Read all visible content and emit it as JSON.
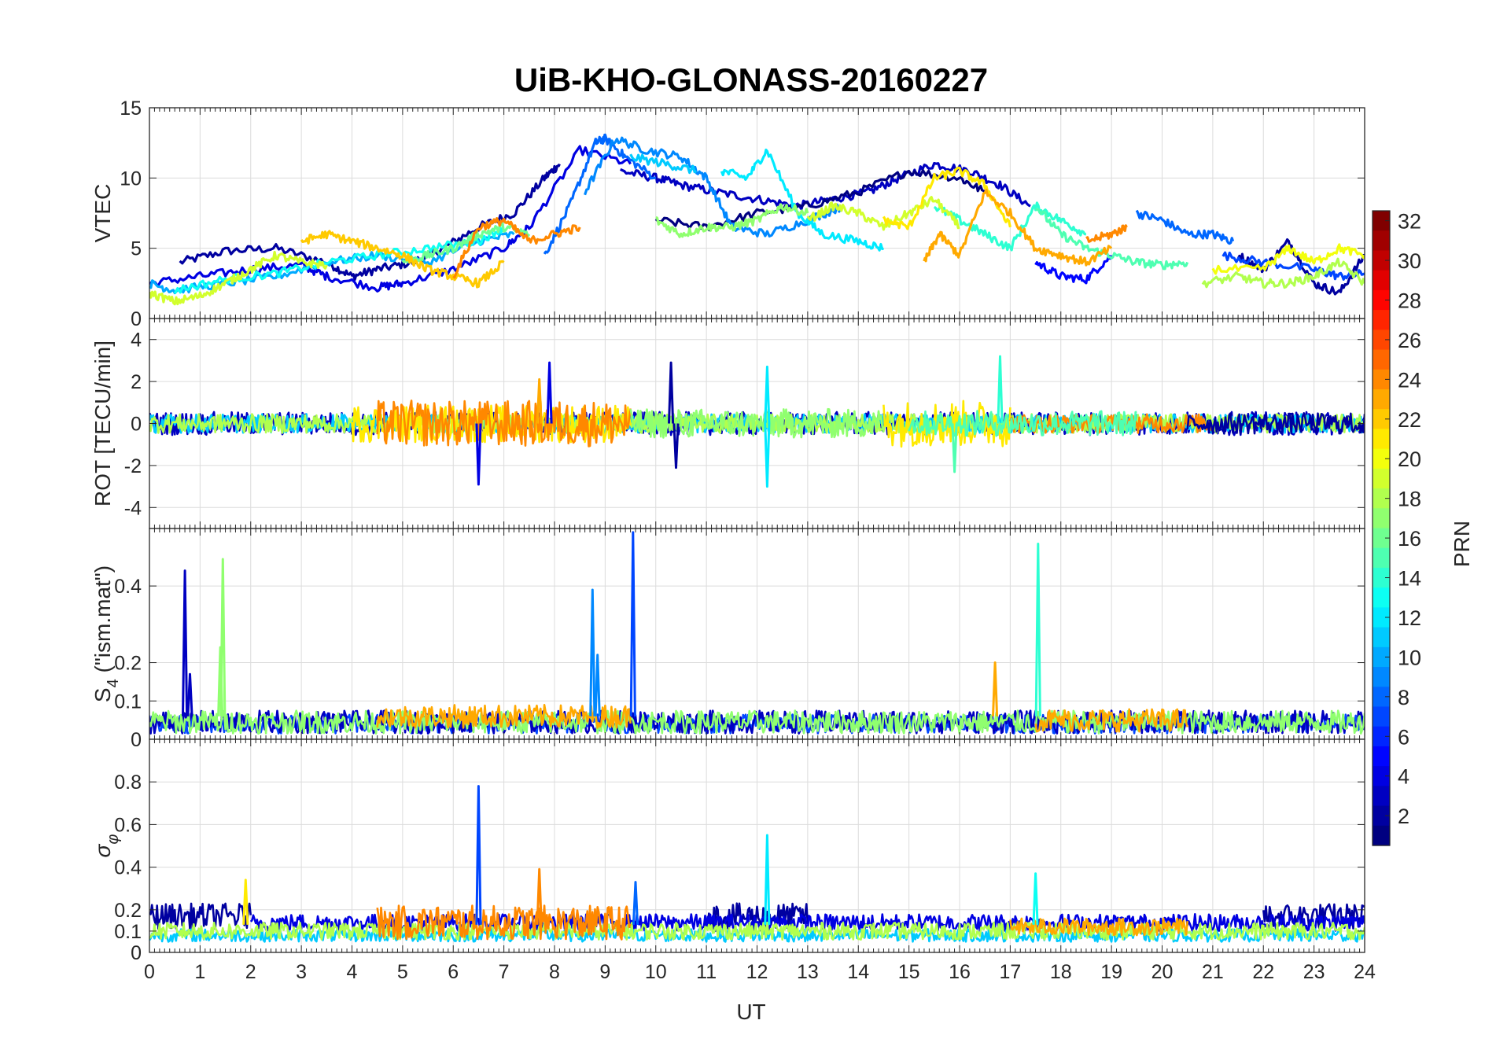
{
  "figure": {
    "title": "UiB-KHO-GLONASS-20160227",
    "xlabel": "UT",
    "x_ticks": [
      "0",
      "1",
      "2",
      "3",
      "4",
      "5",
      "6",
      "7",
      "8",
      "9",
      "10",
      "11",
      "12",
      "13",
      "14",
      "15",
      "16",
      "17",
      "18",
      "19",
      "20",
      "21",
      "22",
      "23",
      "24"
    ]
  },
  "colorbar": {
    "label": "PRN",
    "colormap": "jet",
    "range": [
      1,
      32
    ],
    "ticks": [
      "2",
      "4",
      "6",
      "8",
      "10",
      "12",
      "14",
      "16",
      "18",
      "20",
      "22",
      "24",
      "26",
      "28",
      "30",
      "32"
    ]
  },
  "chart_data": [
    {
      "type": "line",
      "name": "vtec",
      "title": "UiB-KHO-GLONASS-20160227",
      "xlabel": "",
      "ylabel": "VTEC",
      "xlim": [
        0,
        24
      ],
      "ylim": [
        0,
        15
      ],
      "y_ticks": [
        "0",
        "5",
        "10",
        "15"
      ],
      "grid": true,
      "color_by": "PRN",
      "series": [
        {
          "prn": 2,
          "x": [
            0.6,
            1.5,
            2.5,
            3.5,
            4.0,
            4.5,
            5.2,
            5.8,
            6.5,
            7.2,
            7.8,
            8.1
          ],
          "y": [
            4.0,
            4.8,
            5.0,
            4.0,
            3.0,
            3.5,
            4.0,
            5.0,
            6.5,
            7.5,
            10.0,
            11.0
          ]
        },
        {
          "prn": 3,
          "x": [
            9.3,
            10.0,
            10.5,
            11.2,
            12.0,
            12.8,
            13.5,
            14.2,
            14.8,
            15.5,
            16.2,
            16.8,
            17.4
          ],
          "y": [
            10.5,
            10.0,
            9.5,
            9.0,
            8.5,
            8.0,
            8.5,
            9.0,
            10.0,
            11.0,
            10.5,
            9.5,
            8.0
          ]
        },
        {
          "prn": 4,
          "x": [
            0.0,
            1.0,
            2.0,
            3.0,
            3.5,
            4.5,
            5.0,
            6.0,
            7.0,
            7.5,
            8.5,
            9.5
          ],
          "y": [
            2.5,
            3.0,
            3.5,
            3.8,
            3.0,
            2.2,
            2.5,
            3.5,
            5.0,
            6.5,
            12.0,
            11.0
          ]
        },
        {
          "prn": 1,
          "x": [
            10.0,
            11.0,
            12.0,
            13.0,
            14.0,
            15.0,
            16.0,
            16.5
          ],
          "y": [
            7.0,
            6.5,
            7.5,
            8.0,
            9.0,
            10.5,
            10.0,
            9.0
          ]
        },
        {
          "prn": 2,
          "x": [
            21.5,
            22.0,
            22.5,
            23.0,
            23.5,
            24.0
          ],
          "y": [
            4.5,
            3.5,
            5.5,
            2.5,
            1.8,
            4.5
          ]
        },
        {
          "prn": 5,
          "x": [
            17.5,
            18.0,
            18.5,
            19.0
          ],
          "y": [
            4.0,
            3.0,
            2.8,
            4.5
          ]
        },
        {
          "prn": 8,
          "x": [
            7.8,
            8.3,
            8.8,
            9.0,
            9.4,
            10.0
          ],
          "y": [
            4.5,
            8.0,
            12.5,
            12.8,
            11.5,
            10.0
          ]
        },
        {
          "prn": 8,
          "x": [
            19.5,
            20.0,
            20.5,
            21.0,
            21.4
          ],
          "y": [
            7.5,
            7.0,
            6.0,
            6.0,
            5.5
          ]
        },
        {
          "prn": 7,
          "x": [
            21.2,
            22.0,
            23.0,
            23.5,
            24.0
          ],
          "y": [
            4.5,
            4.0,
            3.5,
            3.0,
            3.2
          ]
        },
        {
          "prn": 9,
          "x": [
            8.6,
            9.2,
            9.8,
            10.5,
            11.0,
            11.5,
            12.2,
            13.0,
            13.7
          ],
          "y": [
            9.0,
            12.8,
            12.0,
            11.5,
            10.0,
            6.5,
            6.0,
            7.0,
            8.0
          ]
        },
        {
          "prn": 10,
          "x": [
            0.0,
            0.5,
            1.5,
            2.5,
            3.5,
            4.5,
            5.5,
            6.5,
            7.2
          ],
          "y": [
            2.5,
            2.0,
            2.5,
            3.0,
            4.0,
            4.5,
            4.0,
            5.5,
            6.0
          ]
        },
        {
          "prn": 11,
          "x": [
            9.5,
            10.2,
            10.8
          ],
          "y": [
            11.5,
            11.0,
            10.5
          ]
        },
        {
          "prn": 12,
          "x": [
            11.3,
            11.8,
            12.2,
            12.8,
            13.3,
            14.0,
            14.5
          ],
          "y": [
            10.5,
            10.0,
            12.0,
            7.5,
            6.0,
            5.5,
            5.0
          ]
        },
        {
          "prn": 13,
          "x": [
            0.5,
            1.5,
            2.5,
            3.5,
            4.5,
            5.5,
            6.5,
            7.0
          ],
          "y": [
            2.0,
            2.8,
            3.2,
            4.0,
            4.5,
            5.0,
            5.5,
            6.5
          ]
        },
        {
          "prn": 14,
          "x": [
            15.5,
            16.0,
            16.5,
            17.0,
            17.5,
            18.0,
            18.5
          ],
          "y": [
            8.0,
            7.0,
            6.0,
            5.0,
            8.0,
            7.0,
            6.0
          ]
        },
        {
          "prn": 15,
          "x": [
            17.5,
            18.0,
            18.5,
            19.0,
            19.5,
            20.0,
            20.5
          ],
          "y": [
            8.0,
            6.0,
            5.0,
            4.5,
            4.0,
            3.8,
            4.0
          ]
        },
        {
          "prn": 16,
          "x": [
            5.0,
            5.5,
            6.0,
            6.5,
            7.0,
            7.5
          ],
          "y": [
            4.0,
            4.5,
            5.0,
            6.0,
            6.5,
            6.0
          ]
        },
        {
          "prn": 17,
          "x": [
            10.0,
            10.5,
            11.0,
            11.5,
            12.0,
            12.5,
            13.0
          ],
          "y": [
            7.0,
            6.0,
            6.5,
            6.5,
            7.0,
            8.0,
            7.5
          ]
        },
        {
          "prn": 18,
          "x": [
            20.8,
            21.5,
            22.0,
            22.5,
            23.0,
            23.5,
            24.0
          ],
          "y": [
            2.5,
            3.0,
            2.5,
            2.5,
            3.0,
            4.0,
            2.5
          ]
        },
        {
          "prn": 19,
          "x": [
            0.0,
            0.5,
            1.0,
            1.5,
            2.0,
            2.5,
            3.0,
            3.5
          ],
          "y": [
            1.8,
            1.2,
            1.6,
            2.5,
            3.5,
            4.5,
            4.0,
            3.8
          ]
        },
        {
          "prn": 19,
          "x": [
            13.0,
            13.5,
            14.0,
            14.5,
            15.0,
            15.5,
            16.0
          ],
          "y": [
            7.0,
            8.0,
            7.5,
            6.5,
            7.5,
            8.5,
            6.5
          ]
        },
        {
          "prn": 20,
          "x": [
            21.0,
            22.0,
            22.5,
            23.0,
            23.5,
            24.0
          ],
          "y": [
            3.5,
            3.5,
            5.0,
            4.0,
            5.0,
            4.5
          ]
        },
        {
          "prn": 21,
          "x": [
            14.5,
            15.0,
            15.5,
            16.0,
            16.5,
            17.0
          ],
          "y": [
            7.0,
            6.5,
            10.0,
            10.5,
            9.5,
            6.5
          ]
        },
        {
          "prn": 22,
          "x": [
            3.0,
            3.5,
            4.0,
            4.5,
            5.0,
            5.5,
            6.0,
            6.5,
            7.0
          ],
          "y": [
            5.5,
            6.0,
            5.5,
            5.0,
            4.5,
            3.5,
            3.0,
            2.5,
            4.0
          ]
        },
        {
          "prn": 23,
          "x": [
            15.3,
            15.6,
            16.0,
            16.5,
            17.0,
            17.5,
            18.0,
            18.5,
            19.0
          ],
          "y": [
            4.0,
            6.0,
            4.5,
            9.0,
            7.5,
            5.0,
            4.5,
            4.0,
            5.0
          ]
        },
        {
          "prn": 24,
          "x": [
            18.5,
            19.0,
            19.3
          ],
          "y": [
            5.5,
            6.0,
            6.5
          ]
        },
        {
          "prn": 24,
          "x": [
            6.0,
            6.5,
            7.0,
            7.5,
            8.0,
            8.5
          ],
          "y": [
            3.0,
            6.5,
            7.0,
            5.5,
            6.0,
            6.5
          ]
        }
      ]
    },
    {
      "type": "line",
      "name": "rot",
      "xlabel": "",
      "ylabel": "ROT [TECU/min]",
      "xlim": [
        0,
        24
      ],
      "ylim": [
        -5,
        5
      ],
      "y_ticks": [
        "-4",
        "-2",
        "0",
        "2",
        "4"
      ],
      "grid": true,
      "color_by": "PRN",
      "noise_bands": [
        {
          "prn": 3,
          "from": 0.0,
          "to": 24.0,
          "amplitude": 0.55
        },
        {
          "prn": 11,
          "from": 0.0,
          "to": 24.0,
          "amplitude": 0.45
        },
        {
          "prn": 18,
          "from": 0.0,
          "to": 24.0,
          "amplitude": 0.45
        },
        {
          "prn": 21,
          "from": 4.0,
          "to": 9.5,
          "amplitude": 0.9
        },
        {
          "prn": 24,
          "from": 4.5,
          "to": 9.5,
          "amplitude": 1.1
        },
        {
          "prn": 17,
          "from": 9.5,
          "to": 14.5,
          "amplitude": 0.7
        },
        {
          "prn": 21,
          "from": 14.5,
          "to": 17.0,
          "amplitude": 1.1
        },
        {
          "prn": 24,
          "from": 17.0,
          "to": 21.0,
          "amplitude": 0.45
        },
        {
          "prn": 15,
          "from": 15.0,
          "to": 19.5,
          "amplitude": 0.6
        },
        {
          "prn": 2,
          "from": 20.5,
          "to": 24.0,
          "amplitude": 0.5
        }
      ],
      "spikes": [
        {
          "prn": 4,
          "x": 6.5,
          "y": -2.9
        },
        {
          "prn": 4,
          "x": 7.9,
          "y": 2.9
        },
        {
          "prn": 2,
          "x": 10.3,
          "y": 2.9
        },
        {
          "prn": 2,
          "x": 10.4,
          "y": -2.1
        },
        {
          "prn": 12,
          "x": 12.2,
          "y": 2.7
        },
        {
          "prn": 12,
          "x": 12.2,
          "y": -3.0
        },
        {
          "prn": 14,
          "x": 16.8,
          "y": 3.2
        },
        {
          "prn": 15,
          "x": 15.9,
          "y": -2.3
        },
        {
          "prn": 23,
          "x": 7.7,
          "y": 2.1
        }
      ]
    },
    {
      "type": "line",
      "name": "s4",
      "xlabel": "",
      "ylabel": "S4 (\"ism.mat\")",
      "ylabel_main": "S",
      "ylabel_sub": "4",
      "ylabel_rest": " (\"ism.mat\")",
      "xlim": [
        0,
        24
      ],
      "ylim": [
        0,
        0.55
      ],
      "y_ticks": [
        "0",
        "0.1",
        "0.2",
        "0.4"
      ],
      "y_tick_values": [
        0,
        0.1,
        0.2,
        0.4
      ],
      "grid": true,
      "color_by": "PRN",
      "noise_bands": [
        {
          "prn": 7,
          "from": 0.0,
          "to": 24.0,
          "base": 0.04,
          "amplitude": 0.025
        },
        {
          "prn": 3,
          "from": 0.0,
          "to": 24.0,
          "base": 0.045,
          "amplitude": 0.03
        },
        {
          "prn": 17,
          "from": 0.0,
          "to": 24.0,
          "base": 0.045,
          "amplitude": 0.03
        },
        {
          "prn": 23,
          "from": 4.5,
          "to": 9.5,
          "base": 0.06,
          "amplitude": 0.03
        },
        {
          "prn": 23,
          "from": 17.5,
          "to": 20.5,
          "base": 0.05,
          "amplitude": 0.03
        }
      ],
      "spikes": [
        {
          "prn": 3,
          "x": 0.7,
          "y": 0.44
        },
        {
          "prn": 3,
          "x": 0.8,
          "y": 0.17
        },
        {
          "prn": 17,
          "x": 1.45,
          "y": 0.47
        },
        {
          "prn": 17,
          "x": 1.4,
          "y": 0.24
        },
        {
          "prn": 9,
          "x": 8.75,
          "y": 0.39
        },
        {
          "prn": 9,
          "x": 8.85,
          "y": 0.22
        },
        {
          "prn": 7,
          "x": 9.55,
          "y": 0.54
        },
        {
          "prn": 14,
          "x": 17.55,
          "y": 0.51
        },
        {
          "prn": 23,
          "x": 16.7,
          "y": 0.2
        }
      ]
    },
    {
      "type": "line",
      "name": "sigma_phi",
      "xlabel": "UT",
      "ylabel": "σφ",
      "ylabel_main": "σ",
      "ylabel_sub": "φ",
      "xlim": [
        0,
        24
      ],
      "ylim": [
        0,
        1
      ],
      "y_ticks": [
        "0",
        "0.1",
        "0.2",
        "0.4",
        "0.6",
        "0.8"
      ],
      "y_tick_values": [
        0,
        0.1,
        0.2,
        0.4,
        0.6,
        0.8
      ],
      "grid": true,
      "color_by": "PRN",
      "noise_bands": [
        {
          "prn": 2,
          "from": 0.0,
          "to": 2.0,
          "base": 0.17,
          "amplitude": 0.06
        },
        {
          "prn": 2,
          "from": 11.0,
          "to": 13.0,
          "base": 0.17,
          "amplitude": 0.06
        },
        {
          "prn": 2,
          "from": 22.0,
          "to": 24.0,
          "base": 0.17,
          "amplitude": 0.06
        },
        {
          "prn": 4,
          "from": 2.0,
          "to": 24.0,
          "base": 0.14,
          "amplitude": 0.04
        },
        {
          "prn": 11,
          "from": 0.0,
          "to": 24.0,
          "base": 0.08,
          "amplitude": 0.03
        },
        {
          "prn": 18,
          "from": 0.0,
          "to": 24.0,
          "base": 0.1,
          "amplitude": 0.04
        },
        {
          "prn": 24,
          "from": 4.5,
          "to": 9.5,
          "base": 0.14,
          "amplitude": 0.08
        },
        {
          "prn": 23,
          "from": 17.0,
          "to": 20.5,
          "base": 0.12,
          "amplitude": 0.04
        }
      ],
      "spikes": [
        {
          "prn": 7,
          "x": 6.5,
          "y": 0.78
        },
        {
          "prn": 12,
          "x": 12.2,
          "y": 0.55
        },
        {
          "prn": 24,
          "x": 7.7,
          "y": 0.39
        },
        {
          "prn": 13,
          "x": 17.5,
          "y": 0.37
        },
        {
          "prn": 21,
          "x": 1.9,
          "y": 0.34
        },
        {
          "prn": 8,
          "x": 9.6,
          "y": 0.33
        }
      ]
    }
  ]
}
